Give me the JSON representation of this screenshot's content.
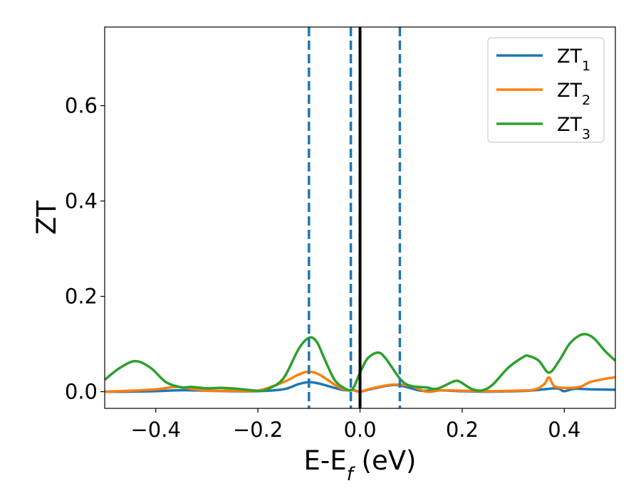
{
  "chart_data": {
    "type": "line",
    "xlabel": "E-E",
    "xlabel_sub": "f",
    "xlabel_unit": " (eV)",
    "ylabel": "ZT",
    "xlim": [
      -0.5,
      0.5
    ],
    "ylim": [
      -0.035,
      0.765
    ],
    "xticks": [
      -0.4,
      -0.2,
      0.0,
      0.2,
      0.4
    ],
    "xtick_labels": [
      "−0.4",
      "−0.2",
      "0.0",
      "0.2",
      "0.4"
    ],
    "yticks": [
      0.0,
      0.2,
      0.4,
      0.6
    ],
    "ytick_labels": [
      "0.0",
      "0.2",
      "0.4",
      "0.6"
    ],
    "grid": false,
    "legend_position": "top-right",
    "vlines": [
      {
        "x": -0.1,
        "style": "dashed",
        "color": "#1f77b4"
      },
      {
        "x": -0.018,
        "style": "dashed",
        "color": "#1f77b4"
      },
      {
        "x": 0.0,
        "style": "solid",
        "color": "#000000"
      },
      {
        "x": 0.078,
        "style": "dashed",
        "color": "#1f77b4"
      }
    ],
    "series": [
      {
        "name": "ZT",
        "sub": "1",
        "color": "#1f77b4",
        "x": [
          -0.5,
          -0.45,
          -0.4,
          -0.35,
          -0.3,
          -0.25,
          -0.2,
          -0.15,
          -0.12,
          -0.1,
          -0.08,
          -0.05,
          -0.03,
          -0.015,
          0.0,
          0.02,
          0.05,
          0.07,
          0.09,
          0.12,
          0.15,
          0.2,
          0.25,
          0.3,
          0.33,
          0.36,
          0.38,
          0.39,
          0.4,
          0.42,
          0.45,
          0.5
        ],
        "y": [
          0.0,
          0.0,
          0.001,
          0.003,
          0.002,
          0.001,
          0.001,
          0.005,
          0.016,
          0.02,
          0.017,
          0.008,
          0.003,
          0.004,
          0.0,
          0.005,
          0.012,
          0.014,
          0.01,
          0.002,
          0.003,
          0.001,
          0.0,
          0.001,
          0.002,
          0.005,
          0.007,
          0.006,
          0.001,
          0.006,
          0.005,
          0.004
        ]
      },
      {
        "name": "ZT",
        "sub": "2",
        "color": "#ff7f0e",
        "x": [
          -0.5,
          -0.45,
          -0.4,
          -0.36,
          -0.33,
          -0.3,
          -0.25,
          -0.2,
          -0.15,
          -0.12,
          -0.1,
          -0.08,
          -0.05,
          -0.03,
          -0.015,
          0.0,
          0.02,
          0.05,
          0.07,
          0.1,
          0.13,
          0.16,
          0.2,
          0.25,
          0.3,
          0.34,
          0.36,
          0.37,
          0.38,
          0.4,
          0.43,
          0.45,
          0.48,
          0.5
        ],
        "y": [
          0.0,
          0.002,
          0.005,
          0.01,
          0.006,
          0.002,
          0.002,
          0.002,
          0.02,
          0.036,
          0.042,
          0.036,
          0.015,
          0.004,
          0.003,
          0.0,
          0.006,
          0.013,
          0.015,
          0.012,
          0.0,
          0.003,
          0.002,
          0.001,
          0.002,
          0.004,
          0.015,
          0.03,
          0.012,
          0.008,
          0.01,
          0.02,
          0.027,
          0.03
        ]
      },
      {
        "name": "ZT",
        "sub": "3",
        "color": "#2ca02c",
        "x": [
          -0.5,
          -0.47,
          -0.44,
          -0.41,
          -0.38,
          -0.35,
          -0.33,
          -0.3,
          -0.27,
          -0.24,
          -0.2,
          -0.18,
          -0.15,
          -0.12,
          -0.1,
          -0.085,
          -0.07,
          -0.05,
          -0.03,
          -0.015,
          0.0,
          0.015,
          0.035,
          0.05,
          0.08,
          0.1,
          0.13,
          0.15,
          0.18,
          0.19,
          0.2,
          0.22,
          0.24,
          0.26,
          0.29,
          0.32,
          0.33,
          0.35,
          0.37,
          0.39,
          0.41,
          0.43,
          0.445,
          0.46,
          0.48,
          0.5
        ],
        "y": [
          0.025,
          0.05,
          0.064,
          0.05,
          0.02,
          0.009,
          0.01,
          0.007,
          0.008,
          0.006,
          0.002,
          0.006,
          0.028,
          0.09,
          0.113,
          0.105,
          0.07,
          0.025,
          0.007,
          0.005,
          0.04,
          0.07,
          0.082,
          0.07,
          0.025,
          0.012,
          0.009,
          0.006,
          0.02,
          0.023,
          0.018,
          0.005,
          0.003,
          0.015,
          0.05,
          0.073,
          0.075,
          0.065,
          0.04,
          0.065,
          0.1,
          0.118,
          0.12,
          0.11,
          0.085,
          0.065
        ]
      }
    ]
  }
}
